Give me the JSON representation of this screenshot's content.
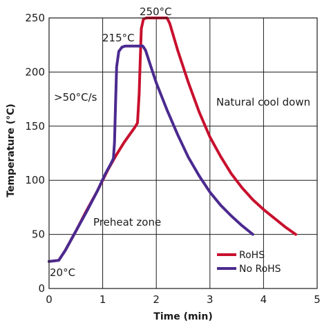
{
  "chart_data": {
    "type": "line",
    "xlabel": "Time (min)",
    "ylabel": "Temperature (°C)",
    "xlim": [
      0,
      5
    ],
    "ylim": [
      0,
      250
    ],
    "xticks": [
      0,
      1,
      2,
      3,
      4,
      5
    ],
    "yticks": [
      0,
      50,
      100,
      150,
      200,
      250
    ],
    "grid": true,
    "legend_position": "bottom-right",
    "series": [
      {
        "name": "RoHS",
        "color": "#c8102e",
        "points": [
          [
            0,
            25
          ],
          [
            0.18,
            26
          ],
          [
            0.3,
            35
          ],
          [
            0.5,
            53
          ],
          [
            0.7,
            72
          ],
          [
            0.9,
            90
          ],
          [
            1.1,
            110
          ],
          [
            1.25,
            123
          ],
          [
            1.4,
            135
          ],
          [
            1.5,
            142
          ],
          [
            1.6,
            149
          ],
          [
            1.65,
            153
          ],
          [
            1.68,
            180
          ],
          [
            1.7,
            210
          ],
          [
            1.72,
            240
          ],
          [
            1.76,
            249
          ],
          [
            1.82,
            250
          ],
          [
            2.2,
            250
          ],
          [
            2.25,
            245
          ],
          [
            2.4,
            220
          ],
          [
            2.6,
            190
          ],
          [
            2.8,
            163
          ],
          [
            3.0,
            140
          ],
          [
            3.2,
            122
          ],
          [
            3.4,
            106
          ],
          [
            3.6,
            93
          ],
          [
            3.8,
            82
          ],
          [
            4.0,
            73
          ],
          [
            4.2,
            65
          ],
          [
            4.4,
            57
          ],
          [
            4.6,
            50
          ]
        ]
      },
      {
        "name": "No RoHS",
        "color": "#4b2a8f",
        "points": [
          [
            0,
            25
          ],
          [
            0.18,
            26
          ],
          [
            0.3,
            35
          ],
          [
            0.5,
            53
          ],
          [
            0.7,
            71
          ],
          [
            0.9,
            90
          ],
          [
            1.05,
            106
          ],
          [
            1.15,
            115
          ],
          [
            1.2,
            120
          ],
          [
            1.22,
            135
          ],
          [
            1.24,
            170
          ],
          [
            1.26,
            205
          ],
          [
            1.3,
            219
          ],
          [
            1.36,
            223
          ],
          [
            1.42,
            224
          ],
          [
            1.75,
            224
          ],
          [
            1.8,
            220
          ],
          [
            1.9,
            205
          ],
          [
            2.0,
            190
          ],
          [
            2.2,
            165
          ],
          [
            2.4,
            142
          ],
          [
            2.6,
            121
          ],
          [
            2.8,
            104
          ],
          [
            3.0,
            89
          ],
          [
            3.2,
            77
          ],
          [
            3.4,
            67
          ],
          [
            3.6,
            58
          ],
          [
            3.8,
            50
          ]
        ]
      }
    ],
    "annotations": [
      "250°C",
      "215°C",
      ">50°C/s",
      "Natural cool down",
      "Preheat zone",
      "20°C"
    ]
  }
}
